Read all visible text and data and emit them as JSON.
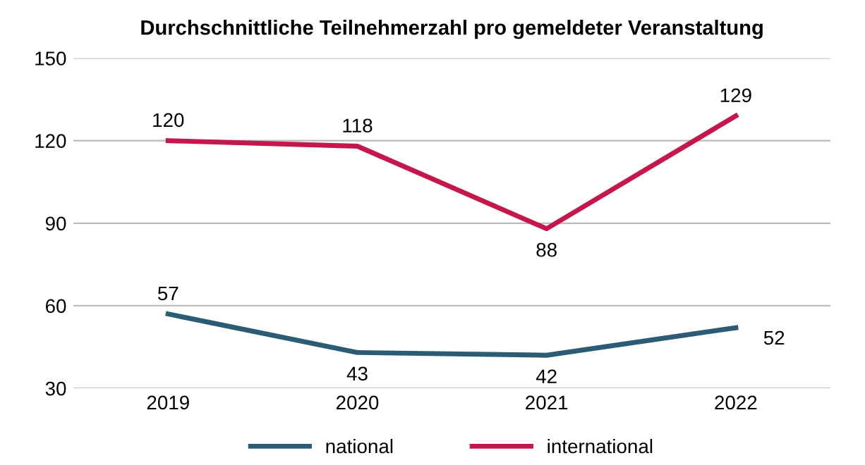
{
  "chart_data": {
    "type": "line",
    "title": "Durchschnittliche Teilnehmerzahl pro gemeldeter Veranstaltung",
    "categories": [
      "2019",
      "2020",
      "2021",
      "2022"
    ],
    "series": [
      {
        "name": "national",
        "color": "#2b5c74",
        "values": [
          57,
          43,
          42,
          52
        ]
      },
      {
        "name": "international",
        "color": "#c4174c",
        "values": [
          120,
          118,
          88,
          129
        ]
      }
    ],
    "ylim": [
      30,
      150
    ],
    "yticks": [
      30,
      60,
      90,
      120,
      150
    ],
    "grid": "y",
    "legend": "bottom",
    "data_labels": true,
    "marker": "none",
    "line_style": "solid"
  }
}
